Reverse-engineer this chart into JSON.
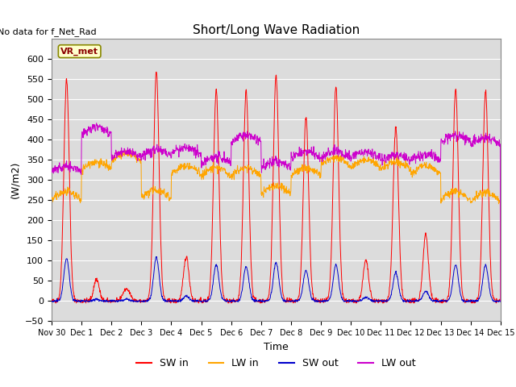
{
  "title": "Short/Long Wave Radiation",
  "xlabel": "Time",
  "ylabel": "(W/m2)",
  "top_left_text": "No data for f_Net_Rad",
  "legend_label_text": "VR_met",
  "ylim": [
    -50,
    650
  ],
  "yticks": [
    -50,
    0,
    50,
    100,
    150,
    200,
    250,
    300,
    350,
    400,
    450,
    500,
    550,
    600
  ],
  "xtick_labels": [
    "Nov 30",
    "Dec 1",
    "Dec 2",
    "Dec 3",
    "Dec 4",
    "Dec 5",
    "Dec 6",
    "Dec 7",
    "Dec 8",
    "Dec 9",
    "Dec 10",
    "Dec 11",
    "Dec 12",
    "Dec 13",
    "Dec 14",
    "Dec 15"
  ],
  "colors": {
    "SW_in": "#FF0000",
    "LW_in": "#FFA500",
    "SW_out": "#0000CC",
    "LW_out": "#CC00CC"
  },
  "legend_entries": [
    "SW in",
    "LW in",
    "SW out",
    "LW out"
  ],
  "plot_bg": "#DCDCDC",
  "fig_bg": "#FFFFFF",
  "grid_color": "#FFFFFF",
  "n_points": 1440
}
